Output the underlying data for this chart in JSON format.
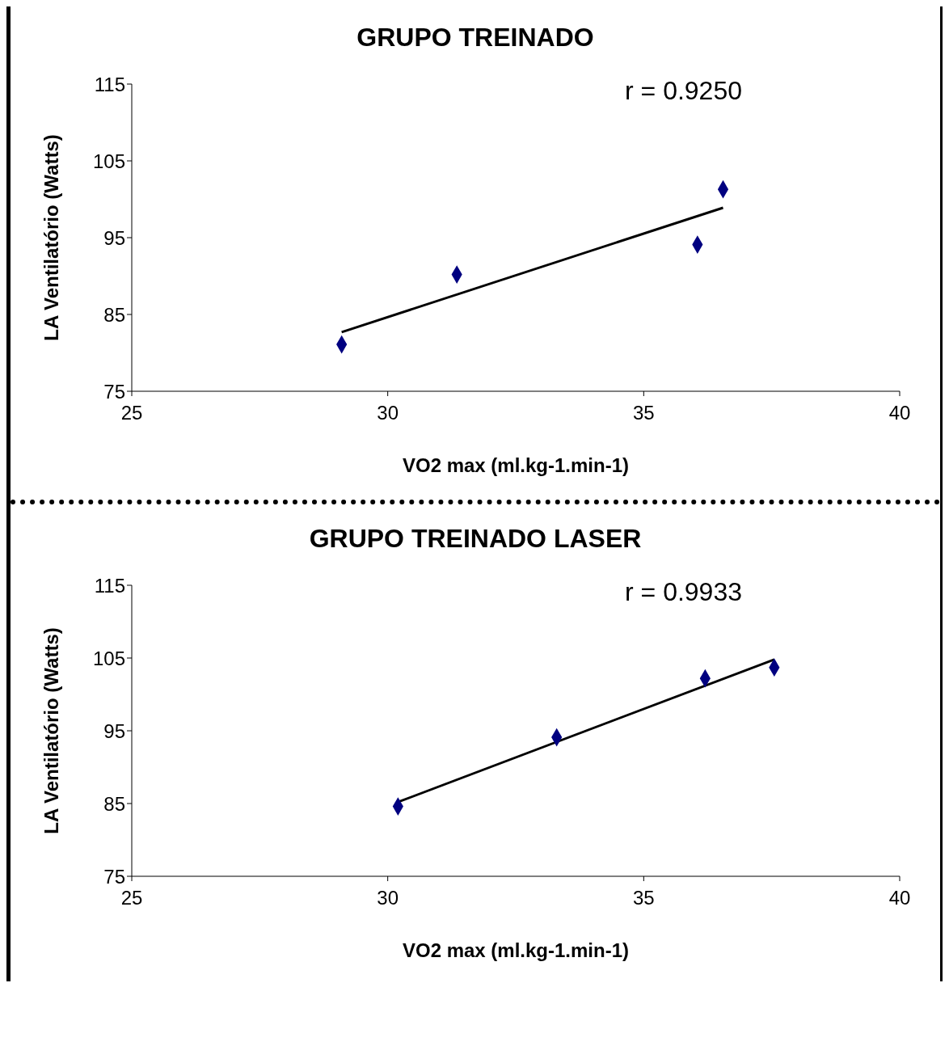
{
  "chart_data": [
    {
      "type": "scatter",
      "title": "GRUPO TREINADO",
      "xlabel": "VO2 max (ml.kg-1.min-1)",
      "ylabel": "LA Ventilatório (Watts)",
      "xlim": [
        25,
        40
      ],
      "xticks": [
        25,
        30,
        35,
        40
      ],
      "ylim": [
        75,
        115
      ],
      "yticks": [
        75,
        85,
        95,
        105,
        115
      ],
      "grid": false,
      "legend": false,
      "marker": "diamond",
      "annotations": [
        "r = 0.9250"
      ],
      "series": [
        {
          "type": "scatter",
          "color": "#000080",
          "x": [
            29.1,
            31.35,
            36.05,
            36.55
          ],
          "values": [
            81.1,
            90.2,
            94.1,
            101.3
          ]
        },
        {
          "type": "line",
          "color": "#000000",
          "line_style": "solid",
          "marker": "none",
          "x": [
            29.1,
            36.55
          ],
          "values": [
            82.7,
            98.9
          ]
        }
      ]
    },
    {
      "type": "scatter",
      "title": "GRUPO TREINADO LASER",
      "xlabel": "VO2 max (ml.kg-1.min-1)",
      "ylabel": "LA Ventilatório (Watts)",
      "xlim": [
        25,
        40
      ],
      "xticks": [
        25,
        30,
        35,
        40
      ],
      "ylim": [
        75,
        115
      ],
      "yticks": [
        75,
        85,
        95,
        105,
        115
      ],
      "grid": false,
      "legend": false,
      "marker": "diamond",
      "annotations": [
        "r = 0.9933"
      ],
      "series": [
        {
          "type": "scatter",
          "color": "#000080",
          "x": [
            30.2,
            33.3,
            36.2,
            37.55
          ],
          "values": [
            84.6,
            94.1,
            102.2,
            103.7
          ]
        },
        {
          "type": "line",
          "color": "#000000",
          "line_style": "solid",
          "marker": "none",
          "x": [
            30.2,
            37.55
          ],
          "values": [
            85.2,
            104.8
          ]
        }
      ]
    }
  ]
}
